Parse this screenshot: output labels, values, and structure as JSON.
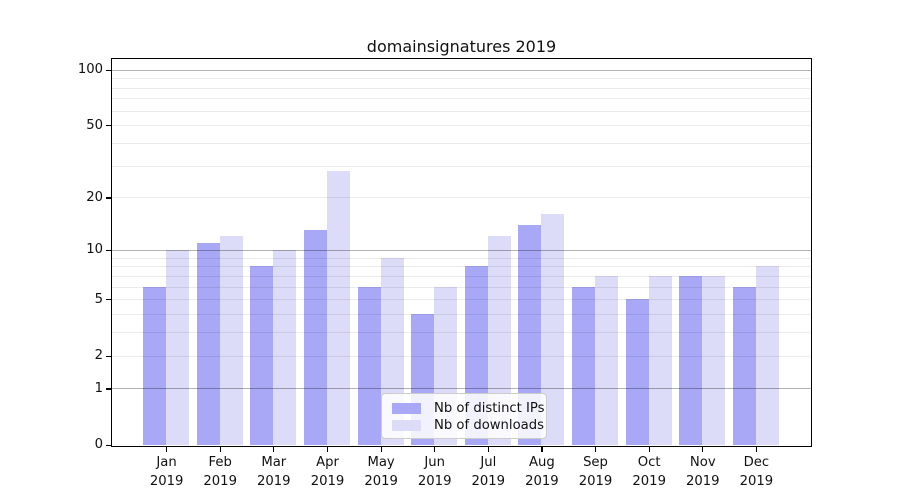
{
  "chart_data": {
    "type": "bar",
    "title": "domainsignatures 2019",
    "categories": [
      "Jan",
      "Feb",
      "Mar",
      "Apr",
      "May",
      "Jun",
      "Jul",
      "Aug",
      "Sep",
      "Oct",
      "Nov",
      "Dec"
    ],
    "x_sublabel": "2019",
    "series": [
      {
        "name": "Nb of distinct IPs",
        "color": "#a8a8f7",
        "values": [
          6,
          11,
          8,
          13,
          6,
          4,
          8,
          14,
          6,
          5,
          7,
          6
        ]
      },
      {
        "name": "Nb of downloads",
        "color": "#dcdcf9",
        "values": [
          10,
          12,
          10,
          28,
          9,
          6,
          12,
          16,
          7,
          7,
          7,
          8
        ]
      }
    ],
    "yscale": "log1p",
    "ylim": [
      0,
      114
    ],
    "ytick_labels": [
      0,
      1,
      2,
      5,
      10,
      20,
      50,
      100
    ],
    "grid_major": [
      1,
      10,
      100
    ],
    "grid_minor": [
      2,
      3,
      4,
      5,
      6,
      7,
      8,
      9,
      20,
      30,
      40,
      50,
      60,
      70,
      80,
      90
    ],
    "grid": "on",
    "grid_position": "above-bars",
    "legend_position": "inside lower center",
    "legend_entries": [
      "Nb of distinct IPs",
      "Nb of downloads"
    ]
  }
}
